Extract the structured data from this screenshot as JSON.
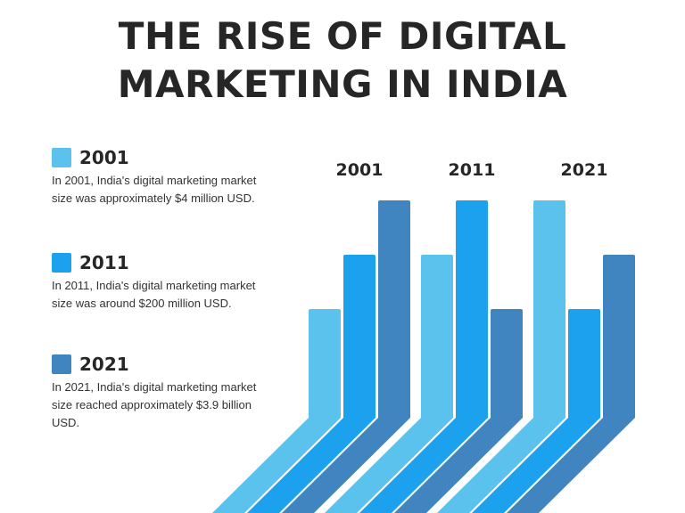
{
  "title": {
    "line1": "THE RISE OF DIGITAL",
    "line2": "MARKETING IN INDIA"
  },
  "legend": [
    {
      "year": "2001",
      "color": "#5bc2ed",
      "desc": "In 2001, India's digital marketing market size was approximately $4 million USD."
    },
    {
      "year": "2011",
      "color": "#1ba1ee",
      "desc": "In 2011, India's digital marketing market size was around $200 million USD."
    },
    {
      "year": "2021",
      "color": "#4085c0",
      "desc": "In 2021, India's digital marketing market size reached approximately $3.9 billion USD."
    }
  ],
  "chart_data": {
    "type": "bar",
    "categories": [
      "2001",
      "2011",
      "2021"
    ],
    "colors": [
      "#5bc2ed",
      "#1ba1ee",
      "#4085c0"
    ],
    "series": [
      {
        "values": [
          2,
          3,
          4
        ]
      },
      {
        "values": [
          3,
          4,
          2
        ]
      },
      {
        "values": [
          4,
          2,
          3
        ]
      }
    ],
    "ylim": [
      0,
      4
    ]
  }
}
